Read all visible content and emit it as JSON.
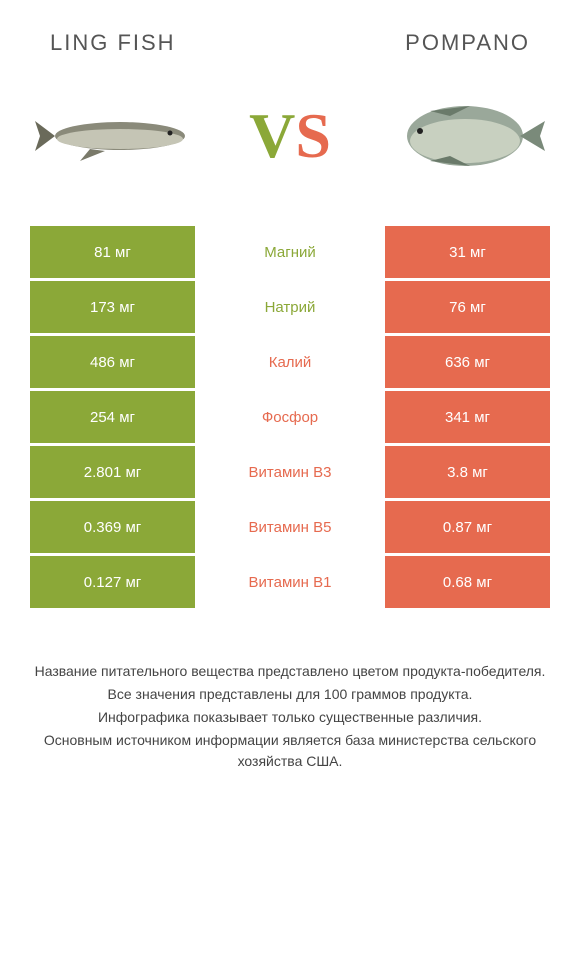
{
  "header": {
    "left_title": "LING FISH",
    "right_title": "POMPANO"
  },
  "vs": {
    "v": "V",
    "s": "S"
  },
  "colors": {
    "left": "#8ba838",
    "right": "#e66a4f",
    "background": "#ffffff"
  },
  "rows": [
    {
      "left": "81 мг",
      "label": "Магний",
      "right": "31 мг",
      "winner": "left"
    },
    {
      "left": "173 мг",
      "label": "Натрий",
      "right": "76 мг",
      "winner": "left"
    },
    {
      "left": "486 мг",
      "label": "Калий",
      "right": "636 мг",
      "winner": "right"
    },
    {
      "left": "254 мг",
      "label": "Фосфор",
      "right": "341 мг",
      "winner": "right"
    },
    {
      "left": "2.801 мг",
      "label": "Витамин B3",
      "right": "3.8 мг",
      "winner": "right"
    },
    {
      "left": "0.369 мг",
      "label": "Витамин B5",
      "right": "0.87 мг",
      "winner": "right"
    },
    {
      "left": "0.127 мг",
      "label": "Витамин B1",
      "right": "0.68 мг",
      "winner": "right"
    }
  ],
  "footer": {
    "line1": "Название питательного вещества представлено цветом продукта-победителя.",
    "line2": "Все значения представлены для 100 граммов продукта.",
    "line3": "Инфографика показывает только существенные различия.",
    "line4": "Основным источником информации является база министерства сельского хозяйства США."
  }
}
